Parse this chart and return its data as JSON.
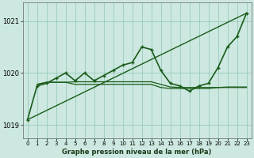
{
  "title": "Graphe pression niveau de la mer (hPa)",
  "background_color": "#cce8e0",
  "grid_color": "#99ccbb",
  "line_color": "#1a5c1a",
  "xlim": [
    -0.5,
    23.5
  ],
  "ylim": [
    1018.75,
    1021.35
  ],
  "yticks": [
    1019,
    1020,
    1021
  ],
  "xtick_labels": [
    "0",
    "1",
    "2",
    "3",
    "4",
    "5",
    "6",
    "7",
    "8",
    "9",
    "10",
    "11",
    "12",
    "13",
    "14",
    "15",
    "16",
    "17",
    "18",
    "19",
    "20",
    "21",
    "22",
    "23"
  ],
  "series": [
    {
      "x": [
        0,
        23
      ],
      "y": [
        1019.1,
        1021.15
      ],
      "marker": null,
      "linewidth": 1.0,
      "linestyle": "-"
    },
    {
      "x": [
        0,
        1,
        2,
        3,
        4,
        5,
        6,
        7,
        8,
        9,
        10,
        11,
        12,
        13,
        14,
        15,
        16,
        17,
        18,
        19,
        20,
        21,
        22,
        23
      ],
      "y": [
        1019.1,
        1019.75,
        1019.8,
        1019.9,
        1020.0,
        1019.85,
        1020.0,
        1019.85,
        1019.95,
        1020.05,
        1020.15,
        1020.2,
        1020.5,
        1020.45,
        1020.05,
        1019.8,
        1019.75,
        1019.65,
        1019.75,
        1019.8,
        1020.1,
        1020.5,
        1020.7,
        1021.15
      ],
      "marker": "+",
      "linewidth": 1.2,
      "linestyle": "-"
    },
    {
      "x": [
        1,
        2,
        3,
        4,
        5,
        6,
        7,
        8,
        9,
        10,
        11,
        12,
        13,
        14,
        15,
        16,
        17,
        18,
        19,
        20,
        21,
        22,
        23
      ],
      "y": [
        1019.78,
        1019.82,
        1019.82,
        1019.82,
        1019.83,
        1019.83,
        1019.83,
        1019.83,
        1019.83,
        1019.83,
        1019.83,
        1019.83,
        1019.83,
        1019.78,
        1019.73,
        1019.72,
        1019.72,
        1019.72,
        1019.72,
        1019.72,
        1019.73,
        1019.73,
        1019.73
      ],
      "marker": null,
      "linewidth": 0.9,
      "linestyle": "-"
    },
    {
      "x": [
        1,
        2,
        3,
        4,
        5,
        6,
        7,
        8,
        9,
        10,
        11,
        12,
        13,
        14,
        15,
        16,
        17,
        18,
        19,
        20,
        21,
        22,
        23
      ],
      "y": [
        1019.78,
        1019.82,
        1019.82,
        1019.82,
        1019.78,
        1019.78,
        1019.78,
        1019.78,
        1019.78,
        1019.78,
        1019.78,
        1019.78,
        1019.78,
        1019.72,
        1019.7,
        1019.7,
        1019.7,
        1019.7,
        1019.7,
        1019.72,
        1019.72,
        1019.72,
        1019.72
      ],
      "marker": null,
      "linewidth": 0.9,
      "linestyle": "-"
    }
  ]
}
